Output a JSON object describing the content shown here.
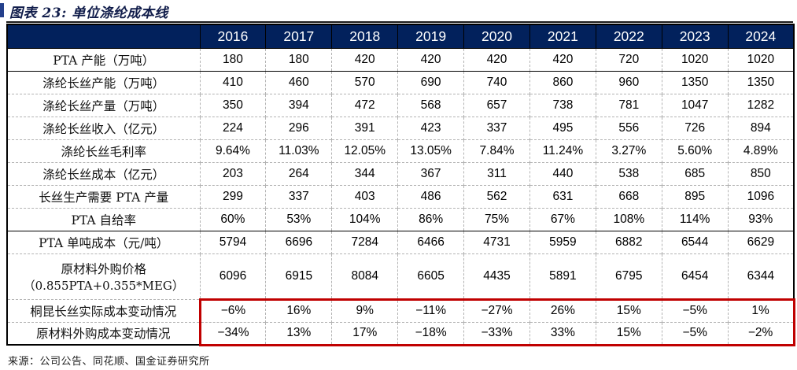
{
  "figure": {
    "title": "图表 23: 单位涤纶成本线",
    "source": "来源：公司公告、同花顺、国金证券研究所"
  },
  "colors": {
    "header_bg": "#02215c",
    "accent_bar": "#24408c",
    "highlight_border": "#c00000"
  },
  "chart_data": {
    "type": "table",
    "title": "单位涤纶成本线",
    "years": [
      "2016",
      "2017",
      "2018",
      "2019",
      "2020",
      "2021",
      "2022",
      "2023",
      "2024"
    ],
    "rows": [
      {
        "label": "PTA 产能（万吨）",
        "values": [
          "180",
          "180",
          "420",
          "420",
          "420",
          "420",
          "720",
          "1020",
          "1020"
        ]
      },
      {
        "label": "涤纶长丝产能（万吨）",
        "values": [
          "410",
          "460",
          "570",
          "690",
          "740",
          "860",
          "960",
          "1350",
          "1350"
        ]
      },
      {
        "label": "涤纶长丝产量（万吨）",
        "values": [
          "350",
          "394",
          "472",
          "568",
          "657",
          "738",
          "781",
          "1047",
          "1282"
        ]
      },
      {
        "label": "涤纶长丝收入（亿元）",
        "values": [
          "224",
          "296",
          "391",
          "423",
          "337",
          "495",
          "556",
          "726",
          "894"
        ]
      },
      {
        "label": "涤纶长丝毛利率",
        "values": [
          "9.64%",
          "11.03%",
          "12.05%",
          "13.05%",
          "7.84%",
          "11.24%",
          "3.27%",
          "5.60%",
          "4.89%"
        ]
      },
      {
        "label": "涤纶长丝成本（亿元）",
        "values": [
          "203",
          "264",
          "344",
          "367",
          "311",
          "440",
          "538",
          "685",
          "850"
        ]
      },
      {
        "label": "长丝生产需要 PTA 产量",
        "values": [
          "299",
          "337",
          "403",
          "486",
          "562",
          "631",
          "668",
          "895",
          "1096"
        ]
      },
      {
        "label": "PTA 自给率",
        "values": [
          "60%",
          "53%",
          "104%",
          "86%",
          "75%",
          "67%",
          "108%",
          "114%",
          "93%"
        ]
      },
      {
        "label": "PTA 单吨成本（元/吨）",
        "values": [
          "5794",
          "6696",
          "7284",
          "6466",
          "4731",
          "5959",
          "6882",
          "6544",
          "6629"
        ]
      },
      {
        "label": "原材料外购价格",
        "label2": "（0.855PTA+0.355*MEG）",
        "values": [
          "6096",
          "6915",
          "8084",
          "6605",
          "4435",
          "5891",
          "6795",
          "6454",
          "6344"
        ]
      },
      {
        "label": "桐昆长丝实际成本变动情况",
        "values": [
          "−6%",
          "16%",
          "9%",
          "−11%",
          "−27%",
          "26%",
          "15%",
          "−5%",
          "1%"
        ]
      },
      {
        "label": "原材料外购成本变动情况",
        "values": [
          "−34%",
          "13%",
          "17%",
          "−18%",
          "−33%",
          "33%",
          "15%",
          "−5%",
          "−2%"
        ]
      }
    ]
  }
}
